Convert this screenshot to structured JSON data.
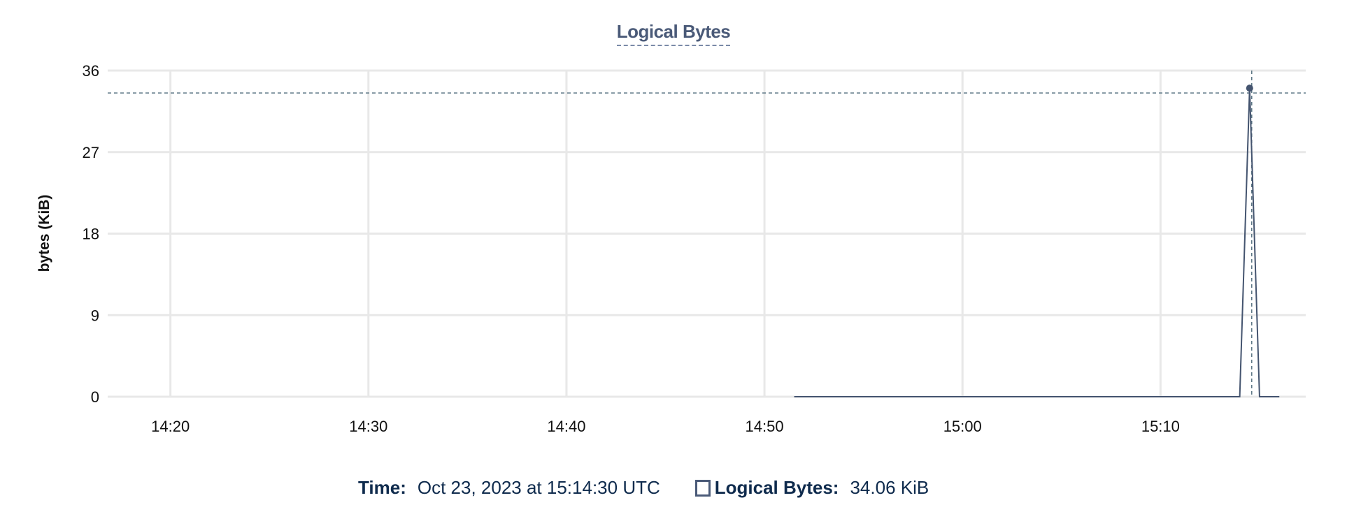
{
  "chart_data": {
    "type": "line",
    "title": "Logical Bytes",
    "ylabel": "bytes (KiB)",
    "xlabel": "",
    "ylim": [
      0,
      36
    ],
    "yticks": [
      "0",
      "9",
      "18",
      "27",
      "36"
    ],
    "xticks": [
      "14:20",
      "14:30",
      "14:40",
      "14:50",
      "15:00",
      "15:10"
    ],
    "xlim": [
      "14:16:50",
      "15:17:20"
    ],
    "grid": true,
    "series": [
      {
        "name": "Logical Bytes",
        "color": "#44546f",
        "x": [
          "14:51:30",
          "15:14:00",
          "15:14:30",
          "15:15:00",
          "15:16:00"
        ],
        "y": [
          0,
          0,
          34.06,
          0,
          0
        ]
      }
    ],
    "crosshair": {
      "x": "15:14:30",
      "y": 34.06
    }
  },
  "legend": {
    "time_label": "Time:",
    "time_value": "Oct 23, 2023 at 15:14:30 UTC",
    "series_label": "Logical Bytes:",
    "series_value": "34.06 KiB"
  }
}
